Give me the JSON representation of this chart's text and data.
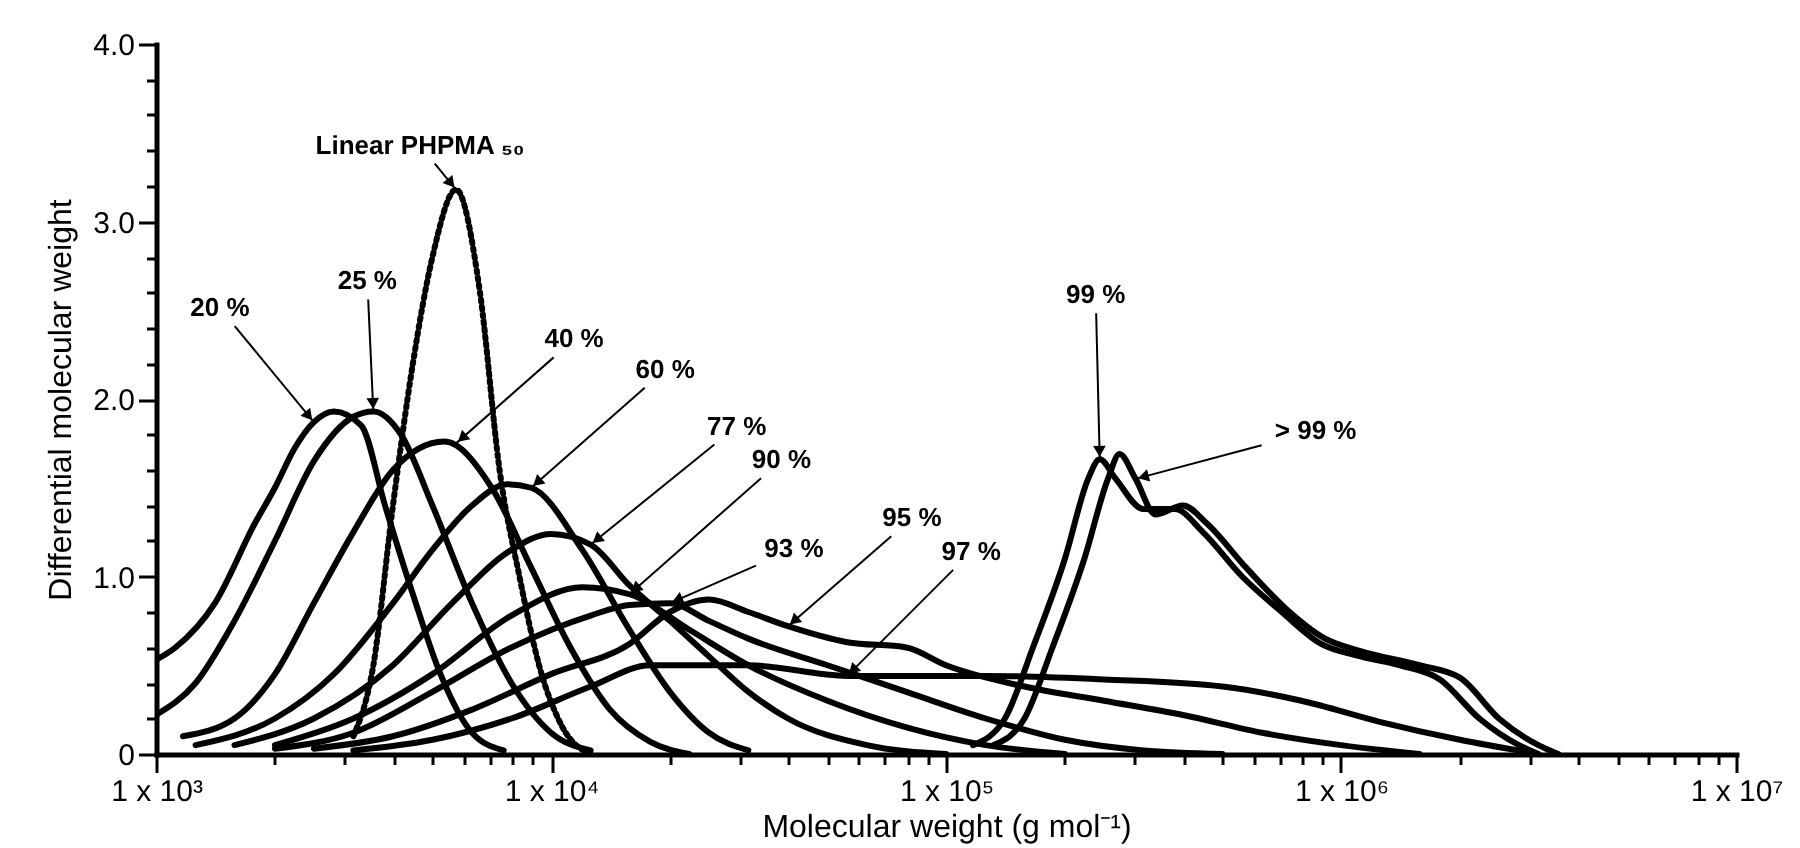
{
  "chart_data": {
    "type": "line",
    "xlabel": "Molecular weight (g mol⁻¹)",
    "ylabel": "Differential molecular weight",
    "log": "x",
    "marker": "none",
    "xlim": [
      1000,
      10000000
    ],
    "ylim": [
      0,
      4
    ],
    "xticks": [
      {
        "value": 1000,
        "label": "1 x 10³"
      },
      {
        "value": 2000,
        "label": null
      },
      {
        "value": 3000,
        "label": null
      },
      {
        "value": 4000,
        "label": null
      },
      {
        "value": 5000,
        "label": null
      },
      {
        "value": 6000,
        "label": null
      },
      {
        "value": 7000,
        "label": null
      },
      {
        "value": 8000,
        "label": null
      },
      {
        "value": 9000,
        "label": null
      },
      {
        "value": 10000,
        "label": "1 x 10⁴"
      },
      {
        "value": 20000,
        "label": null
      },
      {
        "value": 30000,
        "label": null
      },
      {
        "value": 40000,
        "label": null
      },
      {
        "value": 50000,
        "label": null
      },
      {
        "value": 60000,
        "label": null
      },
      {
        "value": 70000,
        "label": null
      },
      {
        "value": 80000,
        "label": null
      },
      {
        "value": 90000,
        "label": null
      },
      {
        "value": 100000,
        "label": "1 x 10⁵"
      },
      {
        "value": 200000,
        "label": null
      },
      {
        "value": 300000,
        "label": null
      },
      {
        "value": 400000,
        "label": null
      },
      {
        "value": 500000,
        "label": null
      },
      {
        "value": 600000,
        "label": null
      },
      {
        "value": 700000,
        "label": null
      },
      {
        "value": 800000,
        "label": null
      },
      {
        "value": 900000,
        "label": null
      },
      {
        "value": 1000000,
        "label": "1 x 10⁶"
      },
      {
        "value": 2000000,
        "label": null
      },
      {
        "value": 3000000,
        "label": null
      },
      {
        "value": 4000000,
        "label": null
      },
      {
        "value": 5000000,
        "label": null
      },
      {
        "value": 6000000,
        "label": null
      },
      {
        "value": 7000000,
        "label": null
      },
      {
        "value": 8000000,
        "label": null
      },
      {
        "value": 9000000,
        "label": null
      },
      {
        "value": 10000000,
        "label": "1 x 10⁷"
      }
    ],
    "yticks": [
      0,
      {
        "value": 0.2,
        "label": null
      },
      {
        "value": 0.4,
        "label": null
      },
      {
        "value": 0.6,
        "label": null
      },
      {
        "value": 0.8,
        "label": null
      },
      {
        "value": 1,
        "label": "1.0"
      },
      {
        "value": 1.2,
        "label": null
      },
      {
        "value": 1.4,
        "label": null
      },
      {
        "value": 1.6,
        "label": null
      },
      {
        "value": 1.8,
        "label": null
      },
      {
        "value": 2,
        "label": "2.0"
      },
      {
        "value": 2.2,
        "label": null
      },
      {
        "value": 2.4,
        "label": null
      },
      {
        "value": 2.6,
        "label": null
      },
      {
        "value": 2.8,
        "label": null
      },
      {
        "value": 3,
        "label": "3.0"
      },
      {
        "value": 3.2,
        "label": null
      },
      {
        "value": 3.4,
        "label": null
      },
      {
        "value": 3.6,
        "label": null
      },
      {
        "value": 3.8,
        "label": null
      },
      {
        "value": 4,
        "label": "4.0"
      }
    ],
    "series": [
      {
        "color": "#000000",
        "x": [
          1000,
          1120,
          1410,
          1780,
          2000,
          2240,
          2510,
          2820,
          3310,
          3800,
          4470,
          5250,
          6310,
          7590
        ],
        "values": [
          0.53,
          0.6,
          0.85,
          1.3,
          1.5,
          1.72,
          1.87,
          1.93,
          1.85,
          1.4,
          0.9,
          0.45,
          0.12,
          0.02
        ]
      },
      {
        "color": "#000000",
        "x": [
          1000,
          1260,
          1580,
          2000,
          2510,
          3160,
          3550,
          4170,
          5010,
          6310,
          7940,
          10000,
          12600
        ],
        "values": [
          0.22,
          0.4,
          0.75,
          1.2,
          1.65,
          1.9,
          1.93,
          1.8,
          1.4,
          0.85,
          0.4,
          0.12,
          0.02
        ]
      },
      {
        "color": "#000000",
        "line_style": "dotted",
        "x": [
          3160,
          3550,
          3980,
          4470,
          5010,
          5750,
          6610,
          7410,
          8320,
          9330,
          10700,
          12600
        ],
        "values": [
          0.1,
          0.5,
          1.4,
          2.2,
          2.8,
          3.18,
          2.6,
          1.6,
          1.0,
          0.5,
          0.15,
          0
        ]
      },
      {
        "color": "#000000",
        "x": [
          1170,
          1580,
          2000,
          2510,
          3160,
          3980,
          5370,
          7080,
          8910,
          11200,
          14100,
          17800,
          22400
        ],
        "values": [
          0.1,
          0.2,
          0.45,
          0.85,
          1.25,
          1.6,
          1.76,
          1.5,
          1.05,
          0.6,
          0.25,
          0.07,
          0
        ]
      },
      {
        "color": "#000000",
        "x": [
          1260,
          2000,
          2820,
          3980,
          5010,
          6310,
          7760,
          8910,
          12000,
          15800,
          20000,
          25100,
          31600
        ],
        "values": [
          0.05,
          0.2,
          0.45,
          0.85,
          1.15,
          1.4,
          1.52,
          1.5,
          1.15,
          0.7,
          0.35,
          0.12,
          0.02
        ]
      },
      {
        "color": "#000000",
        "x": [
          1580,
          2510,
          3980,
          5620,
          7940,
          10000,
          12600,
          15800,
          20000,
          25100,
          31600,
          39800,
          63100,
          100000
        ],
        "values": [
          0.05,
          0.2,
          0.5,
          0.85,
          1.15,
          1.24,
          1.18,
          0.95,
          0.75,
          0.55,
          0.35,
          0.2,
          0.05,
          0
        ]
      },
      {
        "color": "#000000",
        "x": [
          2000,
          3160,
          5010,
          7940,
          12000,
          15800,
          22400,
          31600,
          50100,
          79400,
          126000,
          200000
        ],
        "values": [
          0.05,
          0.2,
          0.45,
          0.78,
          0.94,
          0.9,
          0.7,
          0.5,
          0.3,
          0.15,
          0.05,
          0
        ]
      },
      {
        "color": "#000000",
        "x": [
          2000,
          3160,
          5010,
          7940,
          12600,
          15800,
          20000,
          25100,
          31600,
          50100,
          79400,
          126000,
          200000,
          316000,
          501000
        ],
        "values": [
          0.03,
          0.12,
          0.35,
          0.6,
          0.78,
          0.84,
          0.85,
          0.75,
          0.65,
          0.5,
          0.35,
          0.2,
          0.08,
          0.02,
          0
        ]
      },
      {
        "color": "#000000",
        "x": [
          2510,
          3980,
          6310,
          10000,
          15800,
          20000,
          25100,
          31600,
          39800,
          56200,
          79400,
          100000,
          158000,
          251000,
          398000,
          631000,
          1000000,
          1580000
        ],
        "values": [
          0.03,
          0.1,
          0.25,
          0.45,
          0.62,
          0.8,
          0.87,
          0.8,
          0.72,
          0.63,
          0.6,
          0.5,
          0.38,
          0.3,
          0.22,
          0.12,
          0.05,
          0
        ]
      },
      {
        "color": "#000000",
        "x": [
          3160,
          5010,
          7940,
          12600,
          17800,
          31600,
          56200,
          126000,
          251000,
          501000,
          794000,
          1260000,
          2000000,
          3160000
        ],
        "values": [
          0.02,
          0.08,
          0.2,
          0.38,
          0.5,
          0.5,
          0.44,
          0.44,
          0.42,
          0.38,
          0.3,
          0.18,
          0.08,
          0
        ]
      },
      {
        "color": "#000000",
        "x": [
          117000,
          141000,
          166000,
          200000,
          229000,
          245000,
          269000,
          316000,
          380000,
          447000,
          562000,
          708000,
          891000,
          1120000,
          1410000,
          1780000,
          2240000,
          2820000,
          3160000
        ],
        "values": [
          0.05,
          0.2,
          0.6,
          1.1,
          1.55,
          1.66,
          1.55,
          1.38,
          1.38,
          1.25,
          1.0,
          0.8,
          0.62,
          0.55,
          0.5,
          0.42,
          0.2,
          0.05,
          0
        ]
      },
      {
        "color": "#000000",
        "x": [
          132000,
          158000,
          186000,
          224000,
          257000,
          275000,
          302000,
          339000,
          398000,
          457000,
          575000,
          724000,
          912000,
          1120000,
          1580000,
          2000000,
          2510000,
          3160000,
          3550000
        ],
        "values": [
          0.05,
          0.2,
          0.6,
          1.1,
          1.55,
          1.69,
          1.55,
          1.35,
          1.4,
          1.3,
          1.05,
          0.82,
          0.65,
          0.58,
          0.5,
          0.43,
          0.2,
          0.05,
          0
        ]
      }
    ],
    "annotations": [
      {
        "text": "20 %",
        "x": 2510,
        "y": 1.87
      },
      {
        "text": "25 %",
        "x": 3550,
        "y": 1.93
      },
      {
        "text": "Linear PHPMA ₅₀",
        "x": 5750,
        "y": 3.18
      },
      {
        "text": "40 %",
        "x": 5750,
        "y": 1.75
      },
      {
        "text": "60 %",
        "x": 8910,
        "y": 1.5
      },
      {
        "text": "77 %",
        "x": 12600,
        "y": 1.18
      },
      {
        "text": "90 %",
        "x": 15800,
        "y": 0.9
      },
      {
        "text": "93 %",
        "x": 20000,
        "y": 0.85
      },
      {
        "text": "95 %",
        "x": 39800,
        "y": 0.72
      },
      {
        "text": "97 %",
        "x": 56200,
        "y": 0.44
      },
      {
        "text": "99 %",
        "x": 245000,
        "y": 1.66
      },
      {
        "text": "> 99 %",
        "x": 302000,
        "y": 1.55
      }
    ]
  }
}
